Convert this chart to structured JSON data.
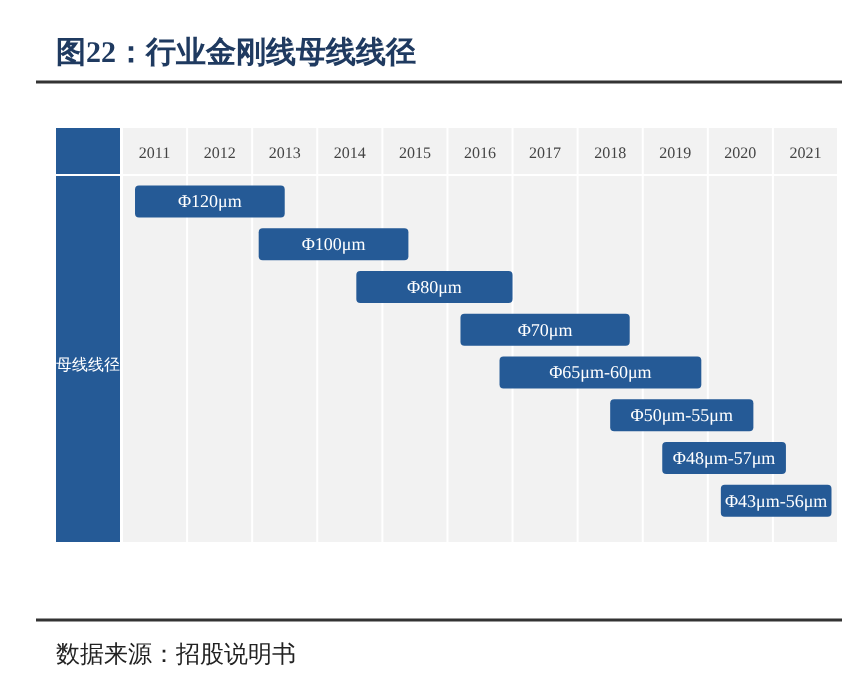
{
  "chart_data": {
    "type": "bar",
    "orientation": "horizontal",
    "title": "图22：行业金刚线母线线径",
    "ylabel": "母线线径",
    "annotations": [
      "数据来源：招股说明书"
    ],
    "categories": [
      "Φ120μm",
      "Φ100μm",
      "Φ80μm",
      "Φ70μm",
      "Φ65μm-60μm",
      "Φ50μm-55μm",
      "Φ48μm-57μm",
      "Φ43μm-56μm"
    ],
    "base": [
      2011.2,
      2013.1,
      2014.6,
      2016.2,
      2016.8,
      2018.5,
      2019.3,
      2020.2
    ],
    "values": [
      2.3,
      2.3,
      2.4,
      2.6,
      3.1,
      2.2,
      1.9,
      1.7
    ],
    "color": "#255a96",
    "bands": [
      {
        "axis": "x",
        "from": 2011,
        "to": 2012,
        "color": "#f2f2f2"
      },
      {
        "axis": "x",
        "from": 2012,
        "to": 2013,
        "color": "#f2f2f2"
      },
      {
        "axis": "x",
        "from": 2013,
        "to": 2014,
        "color": "#f2f2f2"
      },
      {
        "axis": "x",
        "from": 2014,
        "to": 2015,
        "color": "#f2f2f2"
      },
      {
        "axis": "x",
        "from": 2015,
        "to": 2016,
        "color": "#f2f2f2"
      },
      {
        "axis": "x",
        "from": 2016,
        "to": 2017,
        "color": "#f2f2f2"
      },
      {
        "axis": "x",
        "from": 2017,
        "to": 2018,
        "color": "#f2f2f2"
      },
      {
        "axis": "x",
        "from": 2018,
        "to": 2019,
        "color": "#f2f2f2"
      },
      {
        "axis": "x",
        "from": 2019,
        "to": 2020,
        "color": "#f2f2f2"
      },
      {
        "axis": "x",
        "from": 2020,
        "to": 2021,
        "color": "#f2f2f2"
      },
      {
        "axis": "x",
        "from": 2021,
        "to": 2022,
        "color": "#f2f2f2"
      }
    ],
    "xlim": [
      2011,
      2022
    ],
    "xticks": [
      {
        "value": 2011.5,
        "label": "2011"
      },
      {
        "value": 2012.5,
        "label": "2012"
      },
      {
        "value": 2013.5,
        "label": "2013"
      },
      {
        "value": 2014.5,
        "label": "2014"
      },
      {
        "value": 2015.5,
        "label": "2015"
      },
      {
        "value": 2016.5,
        "label": "2016"
      },
      {
        "value": 2017.5,
        "label": "2017"
      },
      {
        "value": 2018.5,
        "label": "2018"
      },
      {
        "value": 2019.5,
        "label": "2019"
      },
      {
        "value": 2020.5,
        "label": "2020"
      },
      {
        "value": 2021.5,
        "label": "2021"
      }
    ]
  }
}
